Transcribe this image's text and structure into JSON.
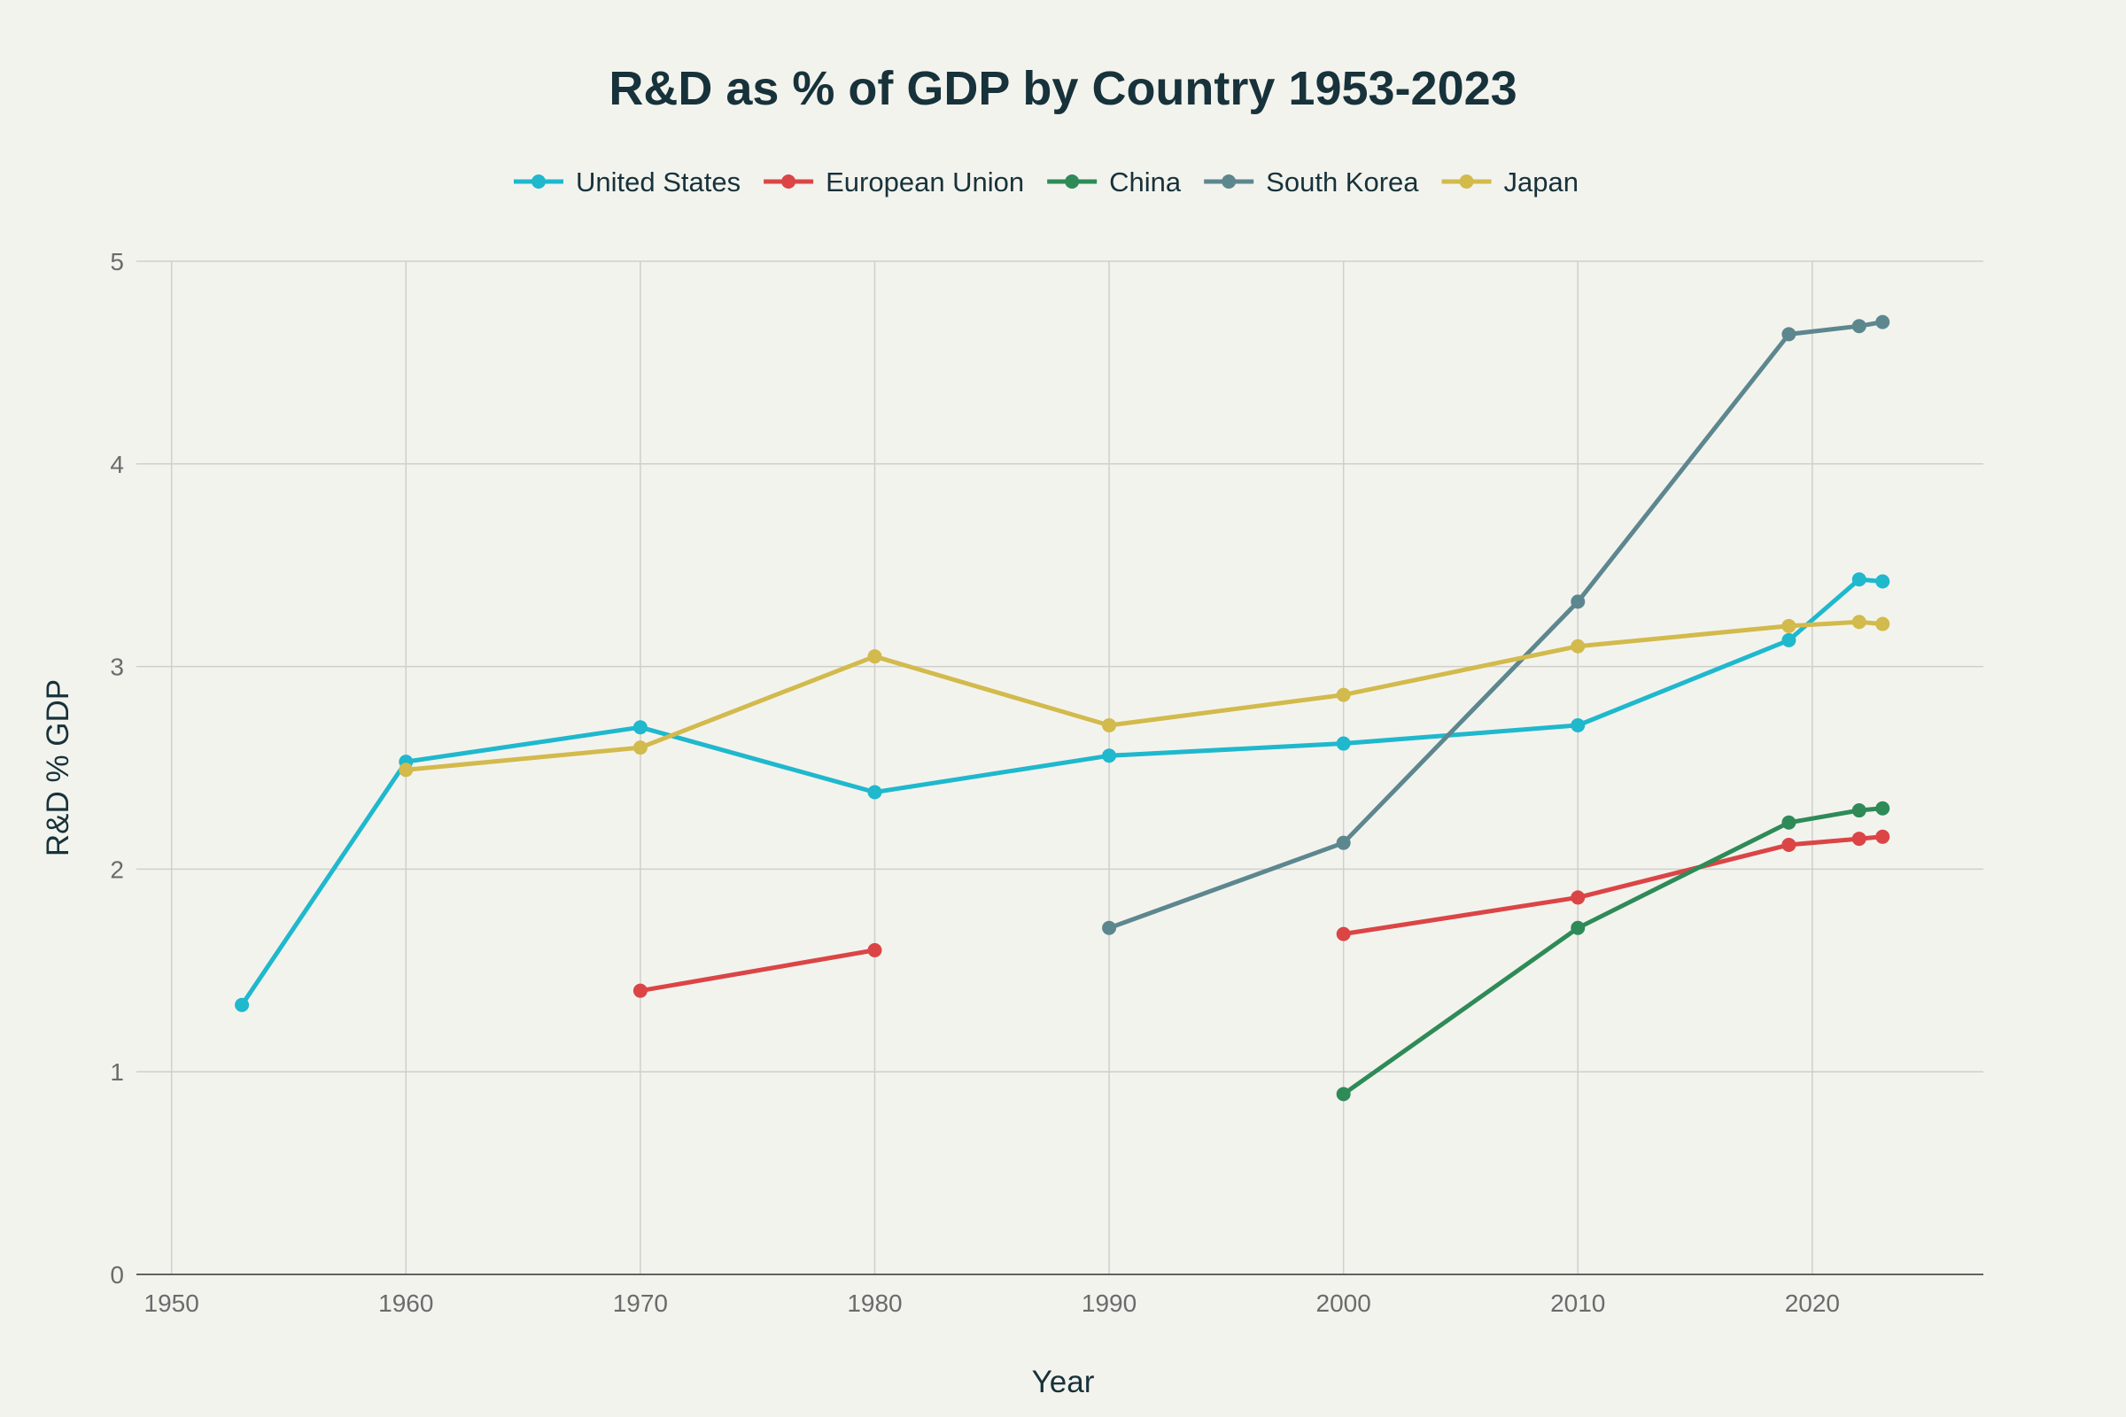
{
  "chart_data": {
    "type": "line",
    "title": "R&D as % of GDP by Country 1953-2023",
    "xlabel": "Year",
    "ylabel": "R&D % GDP",
    "xlim": [
      1948.5,
      2027.3
    ],
    "ylim": [
      0,
      5
    ],
    "xticks": [
      1950,
      1960,
      1970,
      1980,
      1990,
      2000,
      2010,
      2020
    ],
    "yticks": [
      0,
      1,
      2,
      3,
      4,
      5
    ],
    "grid": true,
    "legend_position": "top-center",
    "series": [
      {
        "name": "United States",
        "color": "#1fb8cd",
        "x": [
          1953,
          1960,
          1970,
          1980,
          1990,
          2000,
          2010,
          2019,
          2022,
          2023
        ],
        "y": [
          1.33,
          2.53,
          2.7,
          2.38,
          2.56,
          2.62,
          2.71,
          3.13,
          3.43,
          3.42
        ]
      },
      {
        "name": "European Union",
        "color": "#db4545",
        "x": [
          1970,
          1980,
          null,
          2000,
          2010,
          2019,
          2022,
          2023
        ],
        "y": [
          1.4,
          1.6,
          null,
          1.68,
          1.86,
          2.12,
          2.15,
          2.16
        ]
      },
      {
        "name": "China",
        "color": "#2e8b57",
        "x": [
          2000,
          2010,
          2019,
          2022,
          2023
        ],
        "y": [
          0.89,
          1.71,
          2.23,
          2.29,
          2.3
        ]
      },
      {
        "name": "South Korea",
        "color": "#5d878f",
        "x": [
          1990,
          2000,
          2010,
          2019,
          2022,
          2023
        ],
        "y": [
          1.71,
          2.13,
          3.32,
          4.64,
          4.68,
          4.7
        ]
      },
      {
        "name": "Japan",
        "color": "#d2ba4c",
        "x": [
          1960,
          1970,
          1980,
          1990,
          2000,
          2010,
          2019,
          2022,
          2023
        ],
        "y": [
          2.49,
          2.6,
          3.05,
          2.71,
          2.86,
          3.1,
          3.2,
          3.22,
          3.21
        ]
      }
    ]
  }
}
